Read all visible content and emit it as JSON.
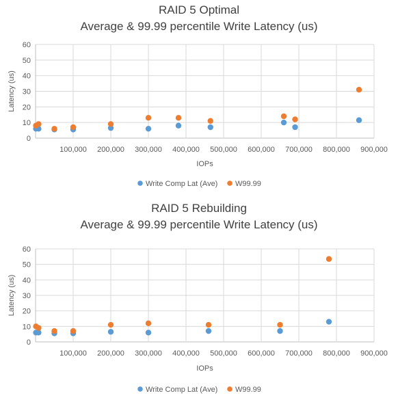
{
  "chart_data": [
    {
      "type": "scatter",
      "title": "RAID 5 Optimal",
      "subtitle": "Average & 99.99 percentile Write Latency (us)",
      "xlabel": "IOPs",
      "ylabel": "Latency (us)",
      "xlim": [
        0,
        900000
      ],
      "ylim": [
        0,
        60
      ],
      "x_ticks": [
        "100,000",
        "200,000",
        "300,000",
        "400,000",
        "500,000",
        "600,000",
        "700,000",
        "800,000",
        "900,000"
      ],
      "y_ticks": [
        "0",
        "10",
        "20",
        "30",
        "40",
        "50",
        "60"
      ],
      "grid": true,
      "legend_position": "bottom",
      "series": [
        {
          "name": "Write Comp Lat (Ave)",
          "color": "#5B9BD5",
          "points": [
            [
              1000,
              6
            ],
            [
              8000,
              6
            ],
            [
              50000,
              5.5
            ],
            [
              100000,
              5.5
            ],
            [
              200000,
              6.5
            ],
            [
              300000,
              6
            ],
            [
              380000,
              8
            ],
            [
              465000,
              7
            ],
            [
              660000,
              10
            ],
            [
              690000,
              7
            ],
            [
              860000,
              11.5
            ]
          ]
        },
        {
          "name": "W99.99",
          "color": "#ED7D31",
          "points": [
            [
              1000,
              8
            ],
            [
              8000,
              9
            ],
            [
              50000,
              6
            ],
            [
              100000,
              7
            ],
            [
              200000,
              9
            ],
            [
              300000,
              13
            ],
            [
              380000,
              13
            ],
            [
              465000,
              11
            ],
            [
              660000,
              14
            ],
            [
              690000,
              12
            ],
            [
              860000,
              31
            ]
          ]
        }
      ]
    },
    {
      "type": "scatter",
      "title": "RAID 5 Rebuilding",
      "subtitle": "Average & 99.99 percentile Write Latency (us)",
      "xlabel": "IOPs",
      "ylabel": "Latency (us)",
      "xlim": [
        0,
        900000
      ],
      "ylim": [
        0,
        60
      ],
      "x_ticks": [
        "100,000",
        "200,000",
        "300,000",
        "400,000",
        "500,000",
        "600,000",
        "700,000",
        "800,000",
        "900,000"
      ],
      "y_ticks": [
        "0",
        "10",
        "20",
        "30",
        "40",
        "50",
        "60"
      ],
      "grid": true,
      "legend_position": "bottom",
      "series": [
        {
          "name": "Write Comp Lat (Ave)",
          "color": "#5B9BD5",
          "points": [
            [
              1000,
              6
            ],
            [
              8000,
              6
            ],
            [
              50000,
              5.5
            ],
            [
              100000,
              5.5
            ],
            [
              200000,
              6.5
            ],
            [
              300000,
              6
            ],
            [
              460000,
              7
            ],
            [
              650000,
              7
            ],
            [
              780000,
              13
            ]
          ]
        },
        {
          "name": "W99.99",
          "color": "#ED7D31",
          "points": [
            [
              1000,
              10
            ],
            [
              8000,
              9
            ],
            [
              50000,
              7
            ],
            [
              100000,
              7
            ],
            [
              200000,
              11
            ],
            [
              300000,
              12
            ],
            [
              460000,
              11
            ],
            [
              650000,
              11
            ],
            [
              780000,
              53.5
            ]
          ]
        }
      ]
    }
  ]
}
